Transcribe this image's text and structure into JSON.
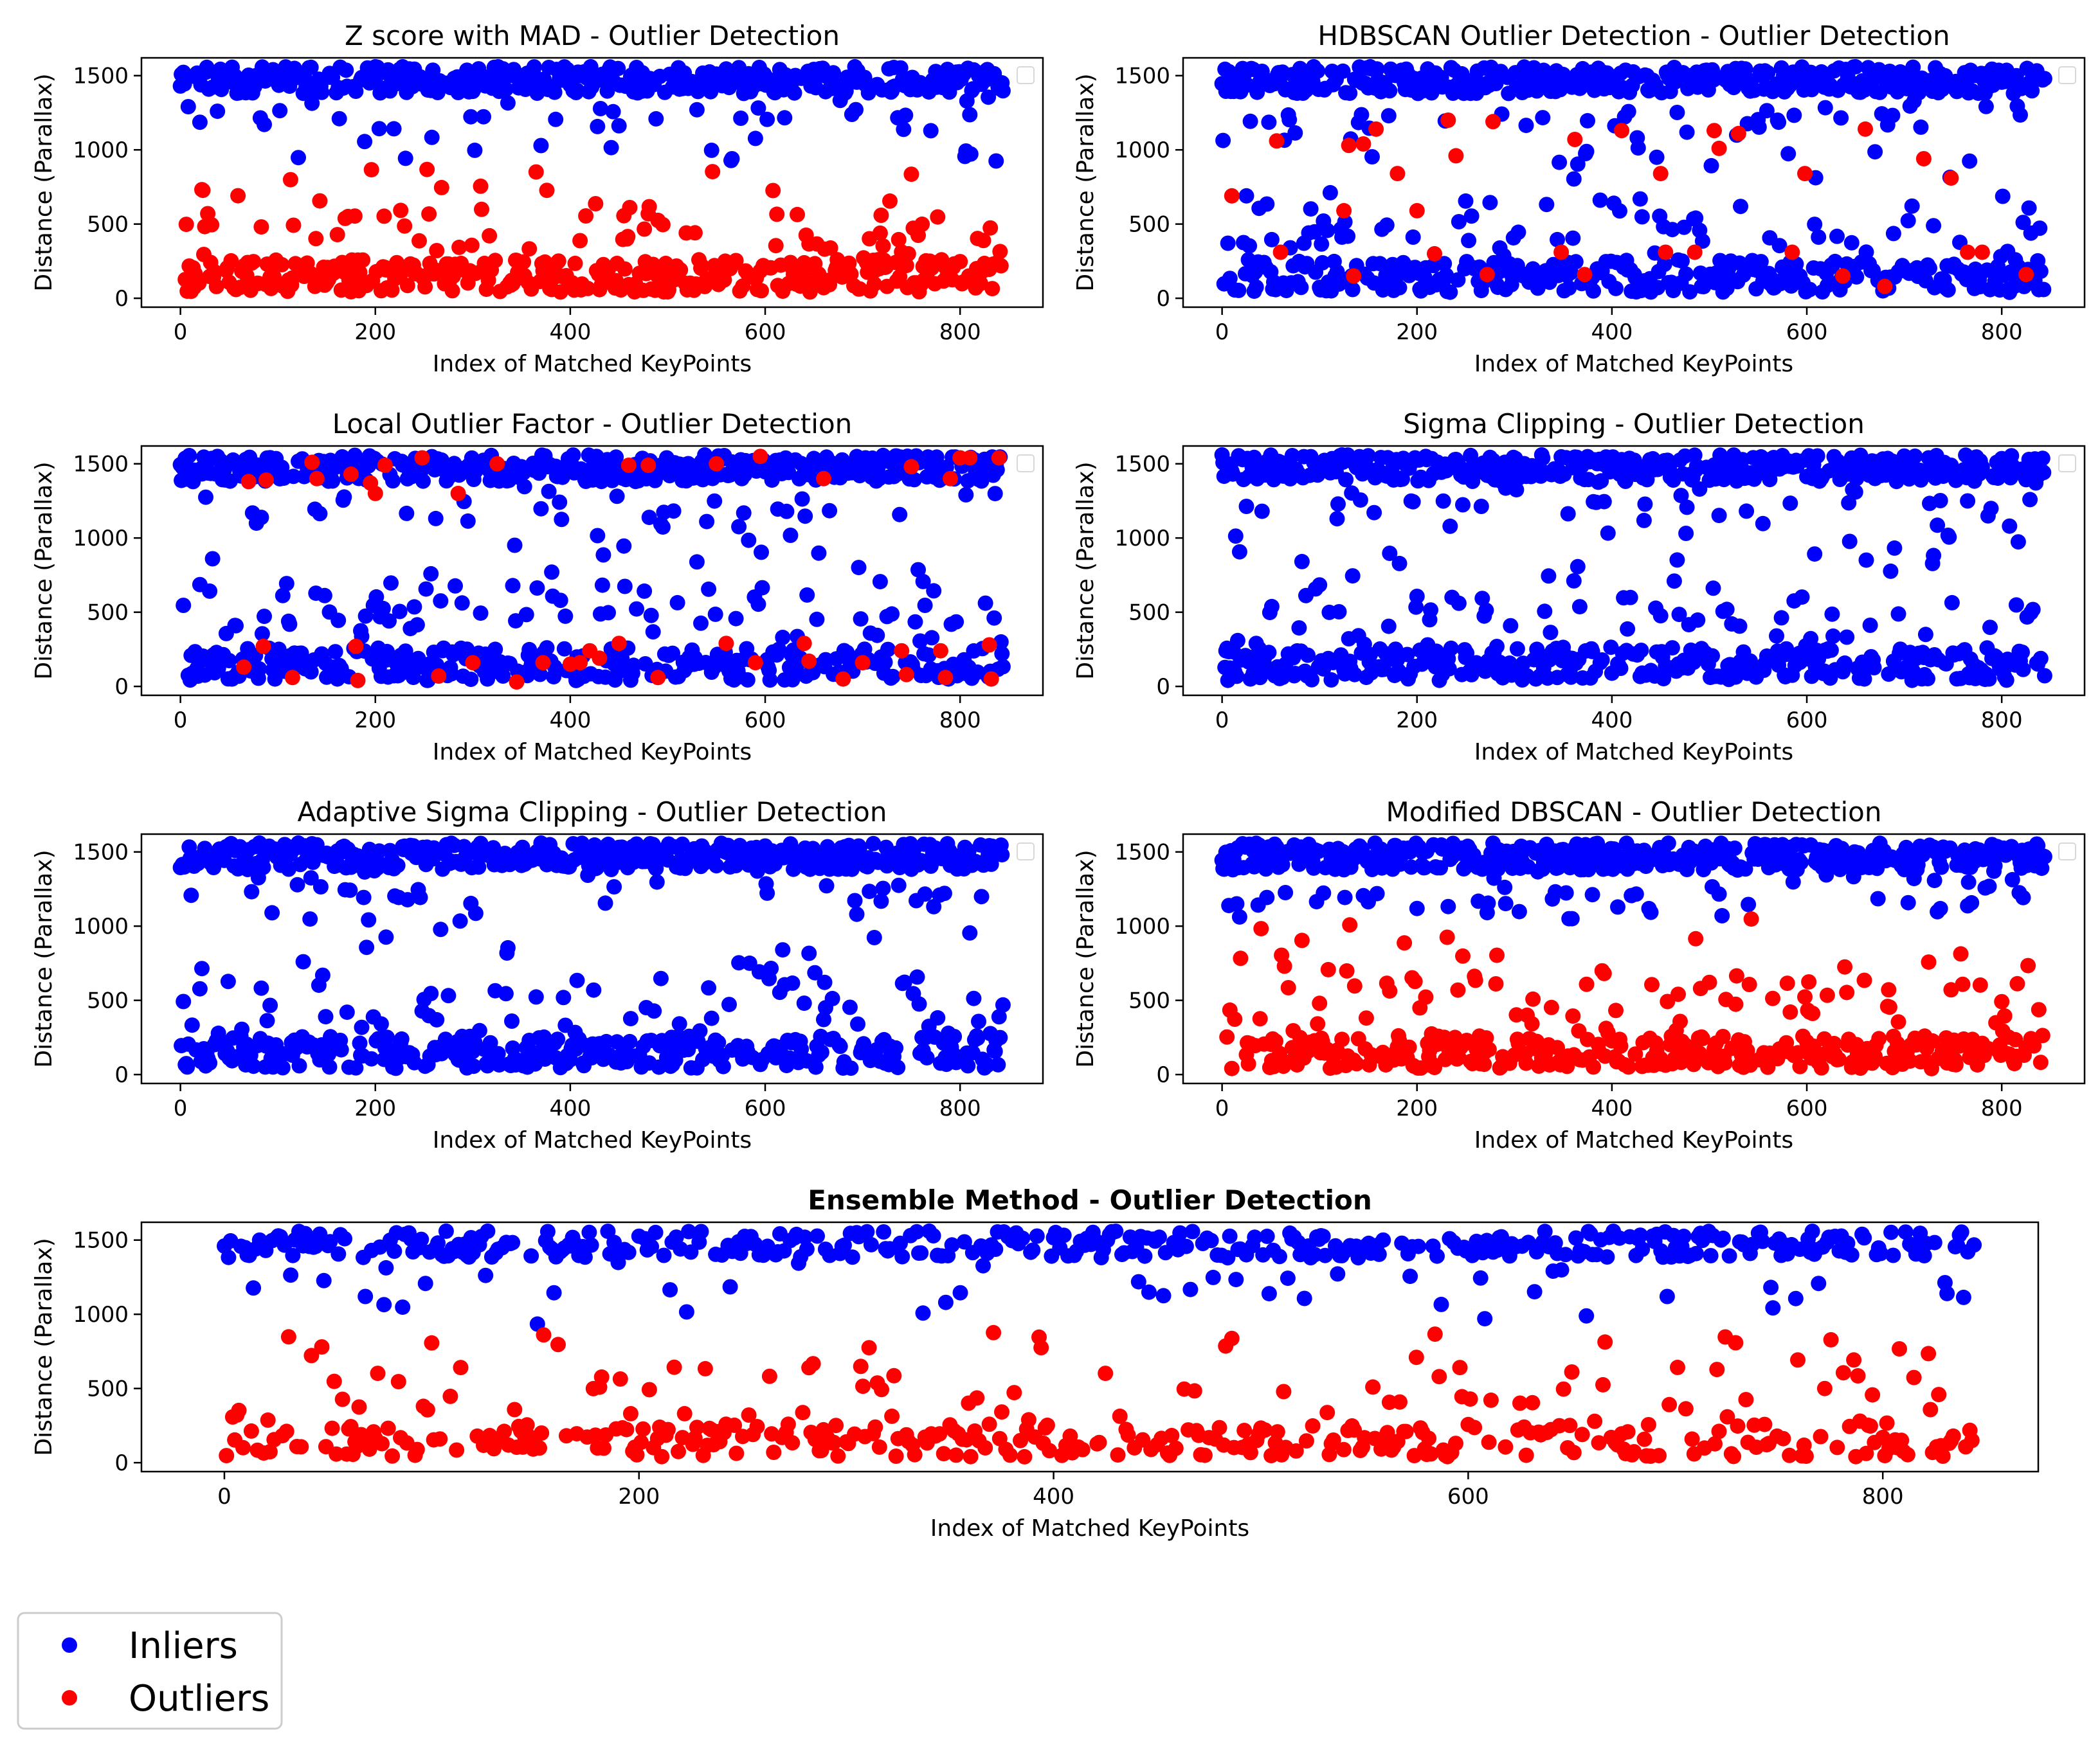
{
  "chart_data": [
    {
      "type": "scatter",
      "title": "Z score with MAD - Outlier Detection",
      "xlabel": "Index of Matched KeyPoints",
      "ylabel": "Distance (Parallax)",
      "xlim": [
        -40,
        885
      ],
      "ylim": [
        -60,
        1620
      ],
      "xticks": [
        0,
        200,
        400,
        600,
        800
      ],
      "yticks": [
        0,
        500,
        1000,
        1500
      ],
      "n_points": 845,
      "inlier_threshold": 900,
      "seed": 11
    },
    {
      "type": "scatter",
      "title": "HDBSCAN Outlier Detection - Outlier Detection",
      "xlabel": "Index of Matched KeyPoints",
      "ylabel": "Distance (Parallax)",
      "xlim": [
        -40,
        885
      ],
      "ylim": [
        -60,
        1620
      ],
      "xticks": [
        0,
        200,
        400,
        600,
        800
      ],
      "yticks": [
        0,
        500,
        1000,
        1500
      ],
      "n_points": 845,
      "outlier_points": [
        [
          10,
          690
        ],
        [
          60,
          310
        ],
        [
          125,
          590
        ],
        [
          135,
          150
        ],
        [
          158,
          1140
        ],
        [
          180,
          840
        ],
        [
          200,
          590
        ],
        [
          218,
          300
        ],
        [
          232,
          1200
        ],
        [
          240,
          960
        ],
        [
          272,
          160
        ],
        [
          278,
          1190
        ],
        [
          348,
          310
        ],
        [
          362,
          1070
        ],
        [
          372,
          160
        ],
        [
          410,
          1130
        ],
        [
          450,
          840
        ],
        [
          455,
          310
        ],
        [
          485,
          310
        ],
        [
          505,
          1130
        ],
        [
          510,
          1010
        ],
        [
          530,
          1110
        ],
        [
          585,
          310
        ],
        [
          598,
          840
        ],
        [
          637,
          150
        ],
        [
          660,
          1140
        ],
        [
          680,
          80
        ],
        [
          720,
          940
        ],
        [
          748,
          810
        ],
        [
          765,
          310
        ],
        [
          780,
          310
        ],
        [
          825,
          160
        ],
        [
          130,
          1030
        ],
        [
          145,
          1040
        ],
        [
          56,
          1060
        ]
      ],
      "seed": 23
    },
    {
      "type": "scatter",
      "title": "Local Outlier Factor - Outlier Detection",
      "xlabel": "Index of Matched KeyPoints",
      "ylabel": "Distance (Parallax)",
      "xlim": [
        -40,
        885
      ],
      "ylim": [
        -60,
        1620
      ],
      "xticks": [
        0,
        200,
        400,
        600,
        800
      ],
      "yticks": [
        0,
        500,
        1000,
        1500
      ],
      "n_points": 845,
      "outlier_points": [
        [
          70,
          1380
        ],
        [
          88,
          1390
        ],
        [
          135,
          1510
        ],
        [
          140,
          1400
        ],
        [
          175,
          1430
        ],
        [
          195,
          1370
        ],
        [
          200,
          1300
        ],
        [
          210,
          1490
        ],
        [
          248,
          1540
        ],
        [
          285,
          1300
        ],
        [
          325,
          1500
        ],
        [
          400,
          1390
        ],
        [
          460,
          1490
        ],
        [
          480,
          1490
        ],
        [
          550,
          1500
        ],
        [
          590,
          1520
        ],
        [
          595,
          1550
        ],
        [
          660,
          1400
        ],
        [
          745,
          1520
        ],
        [
          750,
          1480
        ],
        [
          790,
          1400
        ],
        [
          800,
          1540
        ],
        [
          810,
          1540
        ],
        [
          840,
          1540
        ],
        [
          65,
          130
        ],
        [
          85,
          270
        ],
        [
          115,
          60
        ],
        [
          180,
          270
        ],
        [
          182,
          40
        ],
        [
          265,
          70
        ],
        [
          300,
          160
        ],
        [
          345,
          30
        ],
        [
          372,
          160
        ],
        [
          400,
          150
        ],
        [
          410,
          160
        ],
        [
          420,
          240
        ],
        [
          430,
          190
        ],
        [
          450,
          290
        ],
        [
          490,
          60
        ],
        [
          560,
          290
        ],
        [
          590,
          160
        ],
        [
          640,
          290
        ],
        [
          645,
          170
        ],
        [
          680,
          50
        ],
        [
          700,
          160
        ],
        [
          740,
          240
        ],
        [
          745,
          80
        ],
        [
          780,
          240
        ],
        [
          785,
          60
        ],
        [
          830,
          280
        ],
        [
          832,
          50
        ]
      ],
      "seed": 37
    },
    {
      "type": "scatter",
      "title": "Sigma Clipping - Outlier Detection",
      "xlabel": "Index of Matched KeyPoints",
      "ylabel": "Distance (Parallax)",
      "xlim": [
        -40,
        885
      ],
      "ylim": [
        -60,
        1620
      ],
      "xticks": [
        0,
        200,
        400,
        600,
        800
      ],
      "yticks": [
        0,
        500,
        1000,
        1500
      ],
      "n_points": 845,
      "seed": 41
    },
    {
      "type": "scatter",
      "title": "Adaptive Sigma Clipping - Outlier Detection",
      "xlabel": "Index of Matched KeyPoints",
      "ylabel": "Distance (Parallax)",
      "xlim": [
        -40,
        885
      ],
      "ylim": [
        -60,
        1620
      ],
      "xticks": [
        0,
        200,
        400,
        600,
        800
      ],
      "yticks": [
        0,
        500,
        1000,
        1500
      ],
      "n_points": 845,
      "seed": 53
    },
    {
      "type": "scatter",
      "title": "Modified DBSCAN - Outlier Detection",
      "xlabel": "Index of Matched KeyPoints",
      "ylabel": "Distance (Parallax)",
      "xlim": [
        -40,
        885
      ],
      "ylim": [
        -60,
        1620
      ],
      "xticks": [
        0,
        200,
        400,
        600,
        800
      ],
      "yticks": [
        0,
        500,
        1000,
        1500
      ],
      "n_points": 845,
      "inlier_threshold": 1050,
      "seed": 67
    },
    {
      "type": "scatter",
      "title": "Ensemble Method - Outlier Detection",
      "xlabel": "Index of Matched KeyPoints",
      "ylabel": "Distance (Parallax)",
      "xlim": [
        -40,
        875
      ],
      "ylim": [
        -60,
        1620
      ],
      "xticks": [
        0,
        200,
        400,
        600,
        800
      ],
      "yticks": [
        0,
        500,
        1000,
        1500
      ],
      "n_points": 845,
      "inlier_threshold": 900,
      "seed": 79
    }
  ],
  "legend": {
    "entries": [
      {
        "label": "Inliers",
        "color": "#0000ff"
      },
      {
        "label": "Outliers",
        "color": "#ff0000"
      }
    ],
    "placement": "bottom-left"
  },
  "colors": {
    "inlier": "#0000ff",
    "outlier": "#ff0000"
  }
}
